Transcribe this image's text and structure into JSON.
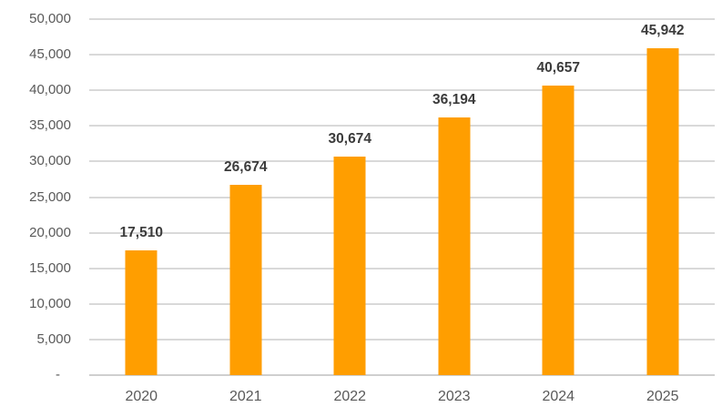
{
  "chart_data": {
    "type": "bar",
    "categories": [
      "2020",
      "2021",
      "2022",
      "2023",
      "2024",
      "2025"
    ],
    "values": [
      17510,
      26674,
      30674,
      36194,
      40657,
      45942
    ],
    "value_labels": [
      "17,510",
      "26,674",
      "30,674",
      "36,194",
      "40,657",
      "45,942"
    ],
    "ylim": [
      0,
      50000
    ],
    "y_tick_step": 5000,
    "y_tick_labels": [
      "-",
      "5,000",
      "10,000",
      "15,000",
      "20,000",
      "25,000",
      "30,000",
      "35,000",
      "40,000",
      "45,000",
      "50,000"
    ],
    "grid": true,
    "legend": "none",
    "colors": {
      "bar": "#FF9E00",
      "gridline": "#D9D9D9",
      "axis_line": "#CFCFCF",
      "tick_label": "#595959",
      "data_label": "#3B3B3B",
      "background": "#FFFFFF"
    }
  }
}
